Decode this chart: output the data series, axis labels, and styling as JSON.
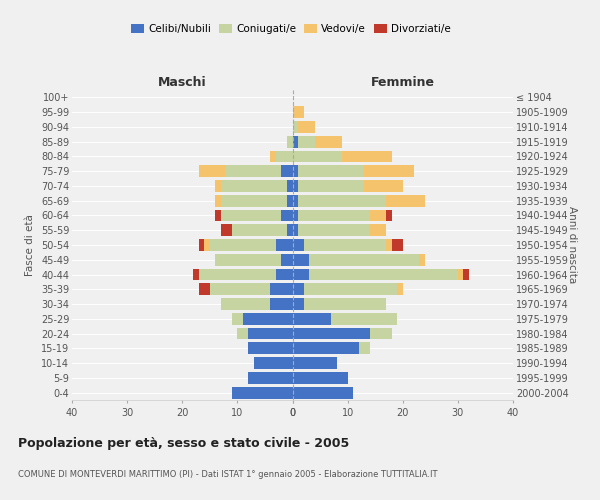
{
  "age_groups": [
    "0-4",
    "5-9",
    "10-14",
    "15-19",
    "20-24",
    "25-29",
    "30-34",
    "35-39",
    "40-44",
    "45-49",
    "50-54",
    "55-59",
    "60-64",
    "65-69",
    "70-74",
    "75-79",
    "80-84",
    "85-89",
    "90-94",
    "95-99",
    "100+"
  ],
  "birth_years": [
    "2000-2004",
    "1995-1999",
    "1990-1994",
    "1985-1989",
    "1980-1984",
    "1975-1979",
    "1970-1974",
    "1965-1969",
    "1960-1964",
    "1955-1959",
    "1950-1954",
    "1945-1949",
    "1940-1944",
    "1935-1939",
    "1930-1934",
    "1925-1929",
    "1920-1924",
    "1915-1919",
    "1910-1914",
    "1905-1909",
    "≤ 1904"
  ],
  "colors": {
    "celibi": "#4472c4",
    "coniugati": "#c5d4a0",
    "vedovi": "#f5c36b",
    "divorziati": "#c0392b"
  },
  "maschi": {
    "celibi": [
      11,
      8,
      7,
      8,
      8,
      9,
      4,
      4,
      3,
      2,
      3,
      1,
      2,
      1,
      1,
      2,
      0,
      0,
      0,
      0,
      0
    ],
    "coniugati": [
      0,
      0,
      0,
      0,
      2,
      2,
      9,
      11,
      14,
      12,
      12,
      10,
      11,
      12,
      12,
      10,
      3,
      1,
      0,
      0,
      0
    ],
    "vedovi": [
      0,
      0,
      0,
      0,
      0,
      0,
      0,
      0,
      0,
      0,
      1,
      0,
      0,
      1,
      1,
      5,
      1,
      0,
      0,
      0,
      0
    ],
    "divorziati": [
      0,
      0,
      0,
      0,
      0,
      0,
      0,
      2,
      1,
      0,
      1,
      2,
      1,
      0,
      0,
      0,
      0,
      0,
      0,
      0,
      0
    ]
  },
  "femmine": {
    "celibi": [
      11,
      10,
      8,
      12,
      14,
      7,
      2,
      2,
      3,
      3,
      2,
      1,
      1,
      1,
      1,
      1,
      0,
      1,
      0,
      0,
      0
    ],
    "coniugati": [
      0,
      0,
      0,
      2,
      4,
      12,
      15,
      17,
      27,
      20,
      15,
      13,
      13,
      16,
      12,
      12,
      9,
      3,
      1,
      0,
      0
    ],
    "vedovi": [
      0,
      0,
      0,
      0,
      0,
      0,
      0,
      1,
      1,
      1,
      1,
      3,
      3,
      7,
      7,
      9,
      9,
      5,
      3,
      2,
      0
    ],
    "divorziati": [
      0,
      0,
      0,
      0,
      0,
      0,
      0,
      0,
      1,
      0,
      2,
      0,
      1,
      0,
      0,
      0,
      0,
      0,
      0,
      0,
      0
    ]
  },
  "xlim": 40,
  "title": "Popolazione per età, sesso e stato civile - 2005",
  "subtitle": "COMUNE DI MONTEVERDI MARITTIMO (PI) - Dati ISTAT 1° gennaio 2005 - Elaborazione TUTTITALIA.IT",
  "ylabel_left": "Fasce di età",
  "ylabel_right": "Anni di nascita",
  "header_maschi": "Maschi",
  "header_femmine": "Femmine",
  "bg_color": "#f0f0f0",
  "bar_height": 0.8
}
